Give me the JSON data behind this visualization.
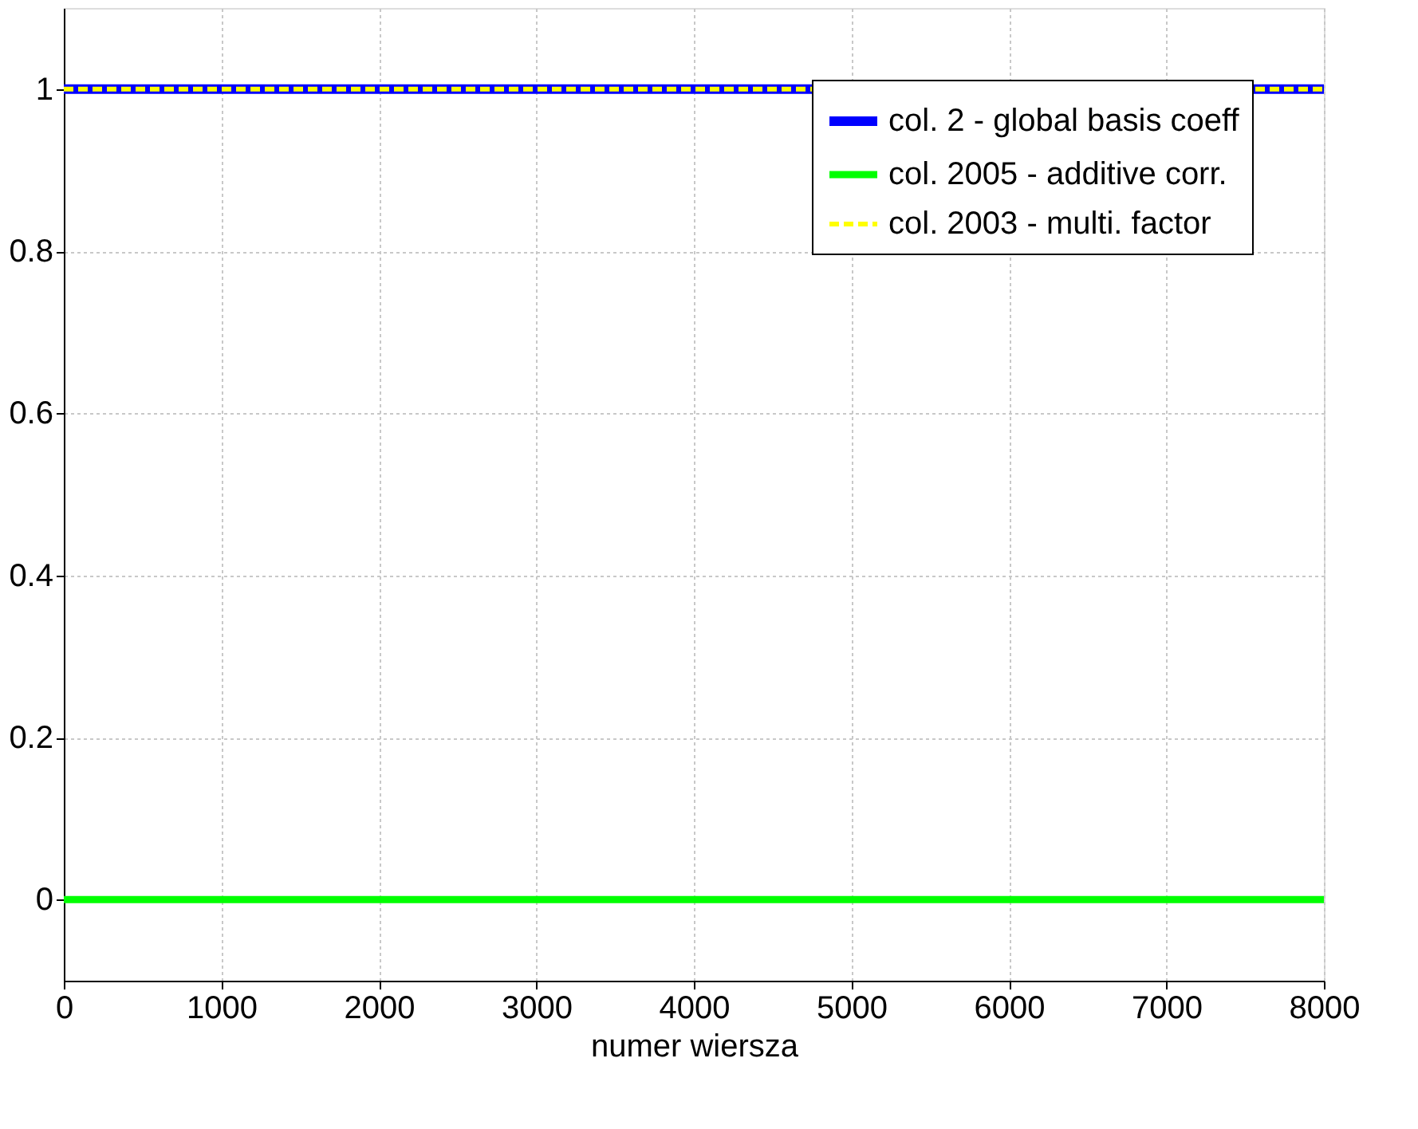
{
  "chart_data": {
    "type": "line",
    "xlabel": "numer wiersza",
    "x": [
      0,
      8000
    ],
    "series": [
      {
        "name": "col. 2 - global basis coeff",
        "color": "#0000ff",
        "values": [
          1,
          1
        ],
        "line_style": "solid"
      },
      {
        "name": "col. 2005 - additive corr.",
        "color": "#00ff00",
        "values": [
          0,
          0
        ],
        "line_style": "solid"
      },
      {
        "name": "col. 2003 - multi. factor",
        "color": "#ffff00",
        "values": [
          1,
          1
        ],
        "line_style": "dashed"
      }
    ],
    "xlim": [
      0,
      8000
    ],
    "xticks": [
      0,
      1000,
      2000,
      3000,
      4000,
      5000,
      6000,
      7000,
      8000
    ],
    "ylim": [
      -0.1,
      1.1
    ],
    "yticks": [
      0,
      0.2,
      0.4,
      0.6,
      0.8,
      1
    ],
    "grid": true,
    "legend": "top right",
    "marker": "none"
  }
}
